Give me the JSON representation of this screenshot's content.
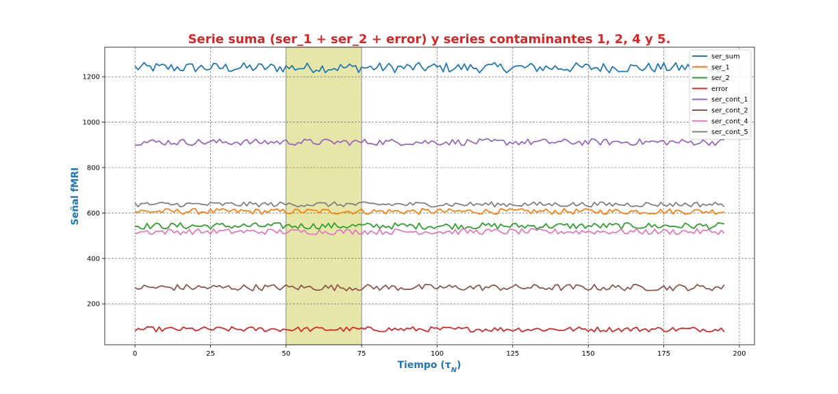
{
  "chart_data": {
    "type": "line",
    "title": "Serie suma (ser_1 + ser_2 + error) y series contaminantes 1, 2, 4 y 5.",
    "xlabel": "Tiempo (τ",
    "xlabel_sub": "N",
    "xlabel_close": ")",
    "ylabel": "Señal fMRI",
    "xlim": [
      -10,
      205
    ],
    "ylim": [
      20,
      1330
    ],
    "xticks": [
      0,
      25,
      50,
      75,
      100,
      125,
      150,
      175,
      200
    ],
    "yticks": [
      200,
      400,
      600,
      800,
      1000,
      1200
    ],
    "grid": true,
    "legend_position": "top-right",
    "highlight_span": [
      50,
      75
    ],
    "highlight_color": "#e6e6a8",
    "x_range": [
      0,
      195
    ],
    "series": [
      {
        "name": "ser_sum",
        "color": "#1f77b4",
        "mean": 1240,
        "amplitude": 14
      },
      {
        "name": "ser_1",
        "color": "#ff7f0e",
        "mean": 607,
        "amplitude": 8
      },
      {
        "name": "ser_2",
        "color": "#2ca02c",
        "mean": 543,
        "amplitude": 9
      },
      {
        "name": "error",
        "color": "#d62728",
        "mean": 88,
        "amplitude": 7
      },
      {
        "name": "ser_cont_1",
        "color": "#9467bd",
        "mean": 912,
        "amplitude": 9
      },
      {
        "name": "ser_cont_2",
        "color": "#8c564b",
        "mean": 272,
        "amplitude": 9
      },
      {
        "name": "ser_cont_4",
        "color": "#e377c2",
        "mean": 518,
        "amplitude": 8
      },
      {
        "name": "ser_cont_5",
        "color": "#7f7f7f",
        "mean": 638,
        "amplitude": 7
      }
    ]
  }
}
